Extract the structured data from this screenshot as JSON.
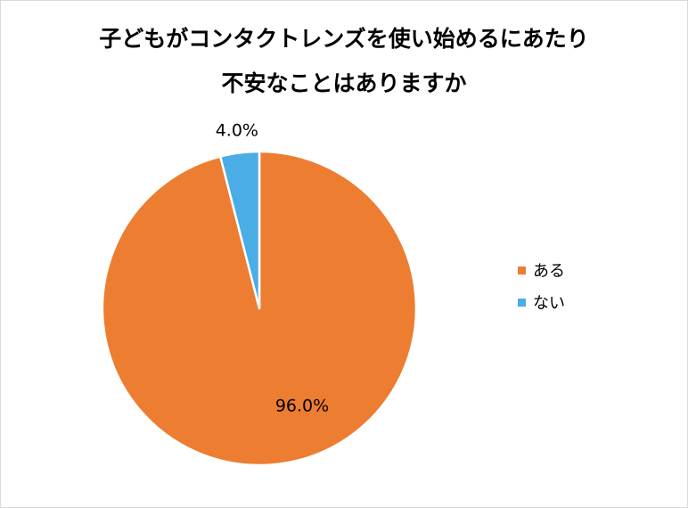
{
  "chart_data": {
    "type": "pie",
    "title_lines": [
      "子どもがコンタクトレンズを使い始めるにあたり",
      "不安なことはありますか"
    ],
    "categories": [
      "ある",
      "ない"
    ],
    "values": [
      96.0,
      4.0
    ],
    "data_labels": [
      "96.0%",
      "4.0%"
    ],
    "colors": [
      "#ED7D31",
      "#4AADE5"
    ],
    "legend_position": "right"
  }
}
